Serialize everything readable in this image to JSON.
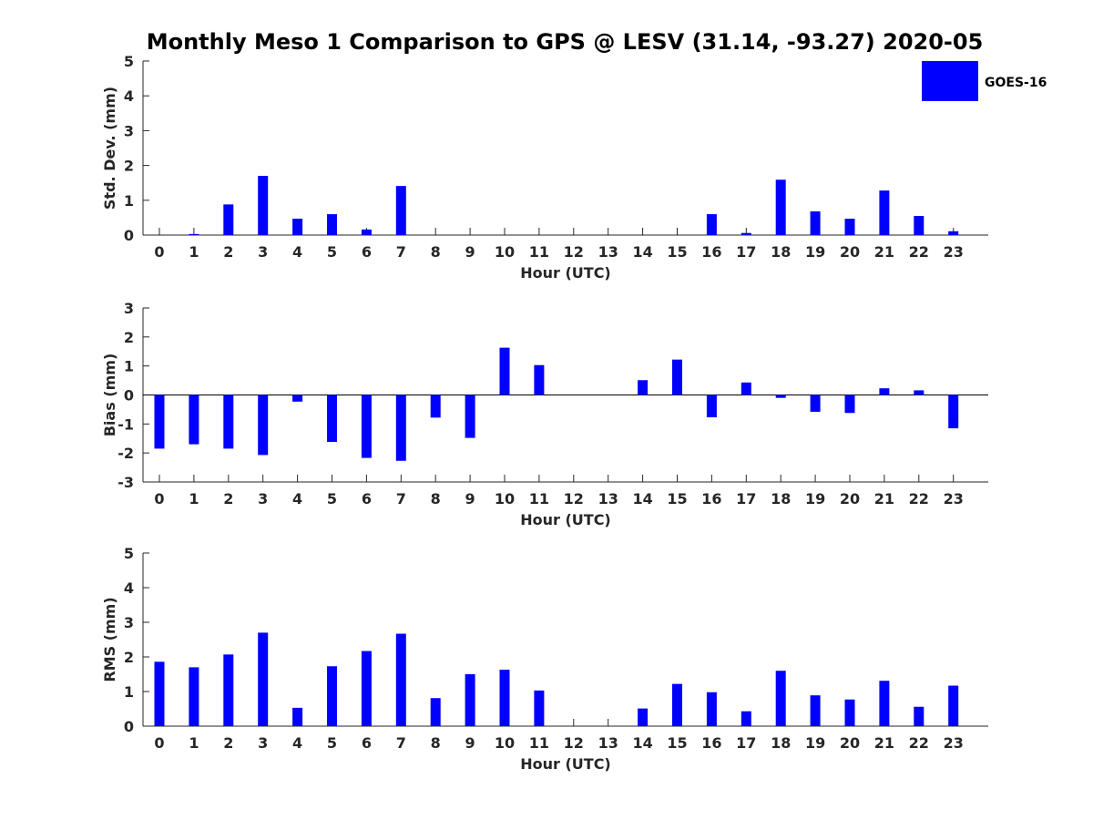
{
  "title": "Monthly Meso 1 Comparison to GPS @ LESV (31.14, -93.27) 2020-05",
  "legend": {
    "label": "GOES-16",
    "color": "#0000ff",
    "placement": "top-right"
  },
  "chart_data": [
    {
      "type": "bar",
      "name": "std-dev",
      "title": "",
      "xlabel": "Hour (UTC)",
      "ylabel": "Std. Dev. (mm)",
      "ylim": [
        0,
        5
      ],
      "yticks": [
        0,
        1,
        2,
        3,
        4,
        5
      ],
      "categories": [
        "0",
        "1",
        "2",
        "3",
        "4",
        "5",
        "6",
        "7",
        "8",
        "9",
        "10",
        "11",
        "12",
        "13",
        "14",
        "15",
        "16",
        "17",
        "18",
        "19",
        "20",
        "21",
        "22",
        "23"
      ],
      "series": [
        {
          "name": "GOES-16",
          "color": "#0000ff",
          "values": [
            0,
            0.03,
            0.88,
            1.7,
            0.47,
            0.6,
            0.16,
            1.41,
            0,
            0,
            0,
            0,
            0,
            0,
            0,
            0,
            0.6,
            0.06,
            1.59,
            0.68,
            0.47,
            1.28,
            0.55,
            0.11
          ]
        }
      ],
      "grid": false
    },
    {
      "type": "bar",
      "name": "bias",
      "title": "",
      "xlabel": "Hour (UTC)",
      "ylabel": "Bias (mm)",
      "ylim": [
        -3,
        3
      ],
      "yticks": [
        -3,
        -2,
        -1,
        0,
        1,
        2,
        3
      ],
      "categories": [
        "0",
        "1",
        "2",
        "3",
        "4",
        "5",
        "6",
        "7",
        "8",
        "9",
        "10",
        "11",
        "12",
        "13",
        "14",
        "15",
        "16",
        "17",
        "18",
        "19",
        "20",
        "21",
        "22",
        "23"
      ],
      "series": [
        {
          "name": "GOES-16",
          "color": "#0000ff",
          "values": [
            -1.85,
            -1.7,
            -1.85,
            -2.07,
            -0.23,
            -1.62,
            -2.17,
            -2.27,
            -0.78,
            -1.48,
            1.63,
            1.03,
            0,
            0,
            0.51,
            1.22,
            -0.77,
            0.43,
            -0.1,
            -0.58,
            -0.62,
            0.23,
            0.16,
            -1.15
          ]
        }
      ],
      "grid": false
    },
    {
      "type": "bar",
      "name": "rms",
      "title": "",
      "xlabel": "Hour (UTC)",
      "ylabel": "RMS (mm)",
      "ylim": [
        0,
        5
      ],
      "yticks": [
        0,
        1,
        2,
        3,
        4,
        5
      ],
      "categories": [
        "0",
        "1",
        "2",
        "3",
        "4",
        "5",
        "6",
        "7",
        "8",
        "9",
        "10",
        "11",
        "12",
        "13",
        "14",
        "15",
        "16",
        "17",
        "18",
        "19",
        "20",
        "21",
        "22",
        "23"
      ],
      "series": [
        {
          "name": "GOES-16",
          "color": "#0000ff",
          "values": [
            1.86,
            1.7,
            2.07,
            2.7,
            0.53,
            1.73,
            2.17,
            2.67,
            0.81,
            1.5,
            1.63,
            1.03,
            0,
            0,
            0.51,
            1.22,
            0.98,
            0.43,
            1.6,
            0.89,
            0.77,
            1.31,
            0.56,
            1.17
          ]
        }
      ],
      "grid": false
    }
  ]
}
